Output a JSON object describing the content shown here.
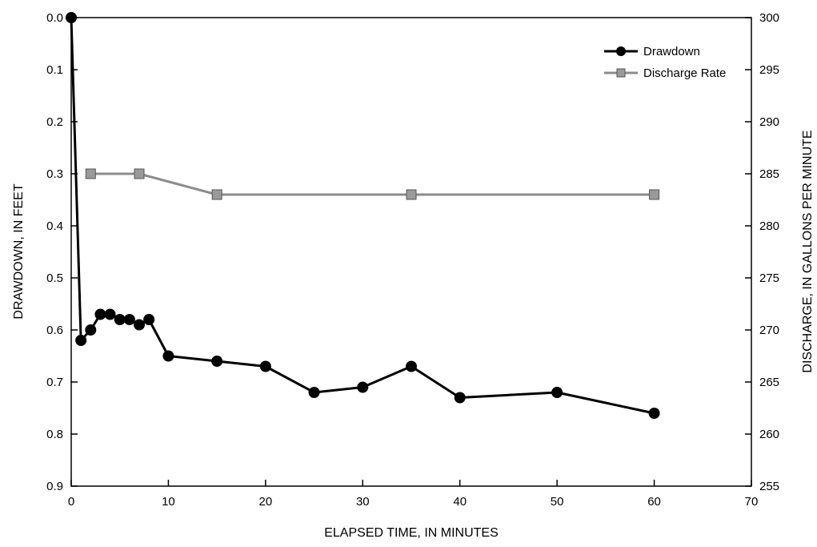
{
  "chart_data": {
    "type": "line",
    "xlabel": "ELAPSED TIME, IN MINUTES",
    "ylabel_left": "DRAWDOWN, IN FEET",
    "ylabel_right": "DISCHARGE, IN GALLONS PER MINUTE",
    "xlim": [
      0,
      70
    ],
    "ylim_left": [
      0.0,
      0.9
    ],
    "ylim_left_inverted": true,
    "ylim_right": [
      255,
      300
    ],
    "x_ticks": [
      "0",
      "10",
      "20",
      "30",
      "40",
      "50",
      "60",
      "70"
    ],
    "y_left_ticks": [
      "0.0",
      "0.1",
      "0.2",
      "0.3",
      "0.4",
      "0.5",
      "0.6",
      "0.7",
      "0.8",
      "0.9"
    ],
    "y_right_ticks": [
      "300",
      "295",
      "290",
      "285",
      "280",
      "275",
      "270",
      "265",
      "260",
      "255"
    ],
    "grid": false,
    "legend_position": "top-right",
    "series": [
      {
        "name": "Drawdown",
        "axis": "left",
        "color": "#000000",
        "marker": "circle",
        "points": [
          [
            0,
            0.0
          ],
          [
            1,
            0.62
          ],
          [
            2,
            0.6
          ],
          [
            3,
            0.57
          ],
          [
            4,
            0.57
          ],
          [
            5,
            0.58
          ],
          [
            6,
            0.58
          ],
          [
            7,
            0.59
          ],
          [
            8,
            0.58
          ],
          [
            10,
            0.65
          ],
          [
            15,
            0.66
          ],
          [
            20,
            0.67
          ],
          [
            25,
            0.72
          ],
          [
            30,
            0.71
          ],
          [
            35,
            0.67
          ],
          [
            40,
            0.73
          ],
          [
            50,
            0.72
          ],
          [
            60,
            0.76
          ]
        ]
      },
      {
        "name": "Discharge Rate",
        "axis": "right",
        "color": "#8c8c8c",
        "marker": "square",
        "points": [
          [
            2,
            285
          ],
          [
            7,
            285
          ],
          [
            15,
            283
          ],
          [
            35,
            283
          ],
          [
            60,
            283
          ]
        ]
      }
    ]
  }
}
